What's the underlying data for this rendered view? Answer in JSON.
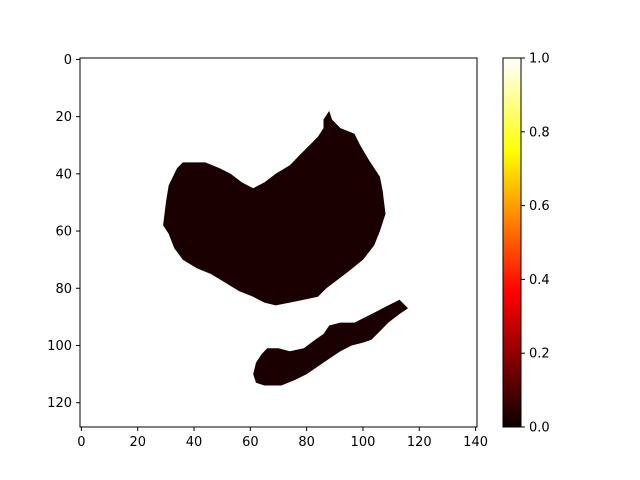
{
  "chart_data": {
    "type": "heatmap",
    "colormap": "hot",
    "title": "",
    "xlabel": "",
    "ylabel": "",
    "image_size": [
      141,
      129
    ],
    "xlim": [
      -0.5,
      140.5
    ],
    "ylim": [
      128.5,
      -0.5
    ],
    "x_ticks": [
      0,
      20,
      40,
      60,
      80,
      100,
      120,
      140
    ],
    "y_ticks": [
      0,
      20,
      40,
      60,
      80,
      100,
      120
    ],
    "colorbar": {
      "range": [
        0.0,
        1.0
      ],
      "ticks": [
        "0.0",
        "0.2",
        "0.4",
        "0.6",
        "0.8",
        "1.0"
      ]
    },
    "background_value": 1.0,
    "region_value": 0.0,
    "regions": [
      {
        "name": "upper blob",
        "value": 0.0,
        "outline": [
          [
            88,
            18
          ],
          [
            89,
            21
          ],
          [
            92,
            24
          ],
          [
            97,
            26
          ],
          [
            99,
            30
          ],
          [
            102,
            35
          ],
          [
            106,
            41
          ],
          [
            107,
            46
          ],
          [
            108,
            54
          ],
          [
            106,
            60
          ],
          [
            104,
            65
          ],
          [
            100,
            70
          ],
          [
            95,
            74
          ],
          [
            91,
            77
          ],
          [
            87,
            80
          ],
          [
            84,
            83
          ],
          [
            79,
            84
          ],
          [
            74,
            85
          ],
          [
            69,
            86
          ],
          [
            65,
            85
          ],
          [
            61,
            83
          ],
          [
            56,
            81
          ],
          [
            51,
            78
          ],
          [
            46,
            75
          ],
          [
            41,
            73
          ],
          [
            36,
            70
          ],
          [
            33,
            66
          ],
          [
            31,
            61
          ],
          [
            29,
            58
          ],
          [
            30,
            50
          ],
          [
            31,
            44
          ],
          [
            34,
            38
          ],
          [
            36,
            36
          ],
          [
            44,
            36
          ],
          [
            49,
            38
          ],
          [
            53,
            40
          ],
          [
            57,
            43
          ],
          [
            61,
            45
          ],
          [
            65,
            43
          ],
          [
            69,
            40
          ],
          [
            74,
            37
          ],
          [
            78,
            33
          ],
          [
            81,
            30
          ],
          [
            84,
            27
          ],
          [
            86,
            24
          ],
          [
            86,
            21
          ]
        ]
      },
      {
        "name": "lower blob",
        "value": 0.0,
        "outline": [
          [
            113,
            84
          ],
          [
            116,
            87
          ],
          [
            113,
            89
          ],
          [
            109,
            92
          ],
          [
            106,
            95
          ],
          [
            103,
            98
          ],
          [
            100,
            99
          ],
          [
            96,
            100
          ],
          [
            92,
            102
          ],
          [
            89,
            104
          ],
          [
            86,
            106
          ],
          [
            83,
            108
          ],
          [
            80,
            110
          ],
          [
            76,
            112
          ],
          [
            71,
            114
          ],
          [
            65,
            114
          ],
          [
            62,
            113
          ],
          [
            61,
            110
          ],
          [
            62,
            106
          ],
          [
            64,
            103
          ],
          [
            66,
            101
          ],
          [
            70,
            101
          ],
          [
            74,
            102
          ],
          [
            79,
            101
          ],
          [
            83,
            98
          ],
          [
            86,
            96
          ],
          [
            88,
            93
          ],
          [
            92,
            92
          ],
          [
            97,
            92
          ],
          [
            101,
            90
          ],
          [
            105,
            88
          ],
          [
            109,
            86
          ]
        ]
      }
    ]
  }
}
